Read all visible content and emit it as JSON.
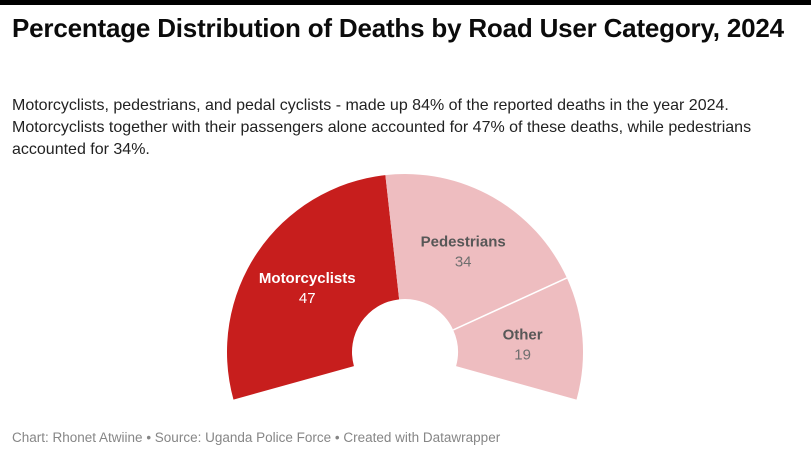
{
  "accent_bar_color": "#000000",
  "header": {
    "title": "Percentage Distribution of Deaths by Road User Category, 2024",
    "subtitle": "Motorcyclists, pedestrians, and pedal cyclists - made up 84% of the reported deaths in the year 2024. Motorcyclists together with their passengers alone accounted for 47% of these deaths, while pedestrians accounted for 34%."
  },
  "chart_data": {
    "type": "pie",
    "variant": "half-donut-gauge",
    "title": "Percentage Distribution of Deaths by Road User Category, 2024",
    "categories": [
      "Motorcyclists",
      "Pedestrians",
      "Other"
    ],
    "values": [
      47,
      34,
      19
    ],
    "unit": "percent of reported road deaths, 2024",
    "colors": [
      "#c71e1d",
      "#eebdc0",
      "#eebdc0"
    ],
    "label_colors": [
      "#ffffff",
      "#575757",
      "#575757"
    ],
    "value_colors": [
      "#ffffff",
      "#6f6f6f",
      "#6f6f6f"
    ],
    "labels_inside": true,
    "legend": "none",
    "separator_color": "#ffffff"
  },
  "footer": {
    "attribution": "Chart: Rhonet Atwiine • Source: Uganda Police Force • Created with Datawrapper"
  }
}
